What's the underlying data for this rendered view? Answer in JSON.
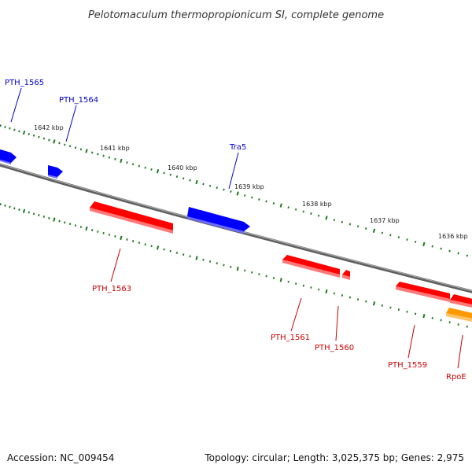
{
  "title": "Pelotomaculum thermopropionicum SI, complete genome",
  "footer": {
    "accession": "Accession: NC_009454",
    "summary": "Topology: circular; Length: 3,025,375 bp; Genes: 2,975"
  },
  "colors": {
    "forward": "#0000ff",
    "reverse": "#ff0000",
    "rna": "#ff9900",
    "backbone": "#777777",
    "tick": "#1a7a1a",
    "forward_label": "#0000cc",
    "reverse_label": "#cc0000"
  },
  "ruler": {
    "unit": "kbp",
    "labels": [
      "1642 kbp",
      "1641 kbp",
      "1640 kbp",
      "1639 kbp",
      "1638 kbp",
      "1637 kbp",
      "1636 kbp"
    ]
  },
  "genes": [
    {
      "id": "PTH_1565",
      "label": "PTH_1565",
      "strand": "forward"
    },
    {
      "id": "PTH_1564",
      "label": "PTH_1564",
      "strand": "forward"
    },
    {
      "id": "Tra5",
      "label": "Tra5",
      "strand": "forward"
    },
    {
      "id": "PTH_1563",
      "label": "PTH_1563",
      "strand": "reverse"
    },
    {
      "id": "PTH_1561",
      "label": "PTH_1561",
      "strand": "reverse"
    },
    {
      "id": "PTH_1560",
      "label": "PTH_1560",
      "strand": "reverse"
    },
    {
      "id": "PTH_1559",
      "label": "PTH_1559",
      "strand": "reverse"
    },
    {
      "id": "RpoE",
      "label": "RpoE",
      "strand": "reverse"
    }
  ]
}
